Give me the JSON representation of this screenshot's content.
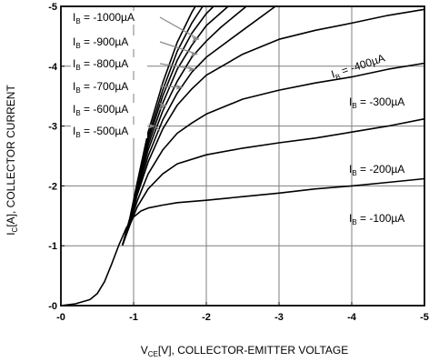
{
  "chart_data": {
    "type": "line",
    "xlabel_parts": [
      "V",
      "CE",
      "[V], COLLECTOR-EMITTER VOLTAGE"
    ],
    "ylabel_parts": [
      "I",
      "C",
      "[A], COLLECTOR CURRENT"
    ],
    "xlim": [
      0,
      -5
    ],
    "ylim": [
      0,
      -5
    ],
    "x_ticks": [
      "-0",
      "-1",
      "-2",
      "-3",
      "-4",
      "-5"
    ],
    "y_ticks": [
      "-0",
      "-1",
      "-2",
      "-3",
      "-4",
      "-5"
    ],
    "grid": true,
    "series": [
      {
        "name": "IB = -100µA",
        "label_main": "I",
        "label_sub": "B",
        "label_rest": " = -100µA",
        "points": [
          [
            0,
            0
          ],
          [
            -0.2,
            -0.03
          ],
          [
            -0.4,
            -0.1
          ],
          [
            -0.5,
            -0.2
          ],
          [
            -0.6,
            -0.4
          ],
          [
            -0.7,
            -0.7
          ],
          [
            -0.8,
            -1.02
          ],
          [
            -0.9,
            -1.3
          ],
          [
            -1.0,
            -1.48
          ],
          [
            -1.1,
            -1.58
          ],
          [
            -1.2,
            -1.63
          ],
          [
            -1.4,
            -1.68
          ],
          [
            -1.6,
            -1.72
          ],
          [
            -2.0,
            -1.76
          ],
          [
            -2.5,
            -1.82
          ],
          [
            -3.0,
            -1.88
          ],
          [
            -3.5,
            -1.95
          ],
          [
            -4.0,
            -2.0
          ],
          [
            -4.5,
            -2.06
          ],
          [
            -5.0,
            -2.12
          ]
        ]
      },
      {
        "name": "IB = -200µA",
        "label_main": "I",
        "label_sub": "B",
        "label_rest": " = -200µA",
        "points": [
          [
            -0.85,
            -1.02
          ],
          [
            -0.95,
            -1.35
          ],
          [
            -1.05,
            -1.65
          ],
          [
            -1.2,
            -1.95
          ],
          [
            -1.4,
            -2.2
          ],
          [
            -1.6,
            -2.37
          ],
          [
            -2.0,
            -2.52
          ],
          [
            -2.5,
            -2.63
          ],
          [
            -3.0,
            -2.72
          ],
          [
            -3.5,
            -2.8
          ],
          [
            -4.0,
            -2.9
          ],
          [
            -4.5,
            -3.0
          ],
          [
            -5.0,
            -3.12
          ]
        ]
      },
      {
        "name": "IB = -300µA",
        "label_main": "I",
        "label_sub": "B",
        "label_rest": " = -300µA",
        "points": [
          [
            -0.85,
            -1.02
          ],
          [
            -0.95,
            -1.38
          ],
          [
            -1.05,
            -1.75
          ],
          [
            -1.2,
            -2.2
          ],
          [
            -1.4,
            -2.6
          ],
          [
            -1.6,
            -2.88
          ],
          [
            -1.8,
            -3.05
          ],
          [
            -2.0,
            -3.2
          ],
          [
            -2.5,
            -3.45
          ],
          [
            -3.0,
            -3.6
          ],
          [
            -3.5,
            -3.72
          ],
          [
            -4.0,
            -3.82
          ],
          [
            -4.5,
            -3.95
          ],
          [
            -5.0,
            -4.05
          ]
        ]
      },
      {
        "name": "IB = -400µA",
        "label_main": "I",
        "label_sub": "B",
        "label_rest": " = -400µA",
        "points": [
          [
            -0.85,
            -1.02
          ],
          [
            -0.95,
            -1.4
          ],
          [
            -1.05,
            -1.85
          ],
          [
            -1.2,
            -2.4
          ],
          [
            -1.4,
            -2.95
          ],
          [
            -1.6,
            -3.35
          ],
          [
            -1.8,
            -3.62
          ],
          [
            -2.0,
            -3.85
          ],
          [
            -2.5,
            -4.2
          ],
          [
            -3.0,
            -4.45
          ],
          [
            -3.5,
            -4.6
          ],
          [
            -4.0,
            -4.72
          ],
          [
            -4.5,
            -4.85
          ],
          [
            -5.0,
            -4.95
          ]
        ]
      },
      {
        "name": "IB = -500µA",
        "label_main": "I",
        "label_sub": "B",
        "label_rest": " = -500µA",
        "points": [
          [
            -0.85,
            -1.02
          ],
          [
            -0.95,
            -1.42
          ],
          [
            -1.05,
            -1.9
          ],
          [
            -1.2,
            -2.5
          ],
          [
            -1.4,
            -3.1
          ],
          [
            -1.6,
            -3.55
          ],
          [
            -1.8,
            -3.9
          ],
          [
            -2.0,
            -4.15
          ],
          [
            -2.5,
            -4.6
          ],
          [
            -2.95,
            -5.0
          ]
        ]
      },
      {
        "name": "IB = -600µA",
        "label_main": "I",
        "label_sub": "B",
        "label_rest": " = -600µA",
        "points": [
          [
            -0.85,
            -1.02
          ],
          [
            -0.95,
            -1.43
          ],
          [
            -1.05,
            -1.95
          ],
          [
            -1.2,
            -2.6
          ],
          [
            -1.4,
            -3.25
          ],
          [
            -1.6,
            -3.75
          ],
          [
            -1.8,
            -4.15
          ],
          [
            -2.0,
            -4.42
          ],
          [
            -2.2,
            -4.65
          ],
          [
            -2.55,
            -5.0
          ]
        ]
      },
      {
        "name": "IB = -700µA",
        "label_main": "I",
        "label_sub": "B",
        "label_rest": " = -700µA",
        "points": [
          [
            -0.85,
            -1.02
          ],
          [
            -0.95,
            -1.44
          ],
          [
            -1.05,
            -1.98
          ],
          [
            -1.2,
            -2.68
          ],
          [
            -1.4,
            -3.38
          ],
          [
            -1.6,
            -3.95
          ],
          [
            -1.8,
            -4.35
          ],
          [
            -2.0,
            -4.68
          ],
          [
            -2.3,
            -5.0
          ]
        ]
      },
      {
        "name": "IB = -800µA",
        "label_main": "I",
        "label_sub": "B",
        "label_rest": " = -800µA",
        "points": [
          [
            -0.85,
            -1.02
          ],
          [
            -0.95,
            -1.45
          ],
          [
            -1.05,
            -2.0
          ],
          [
            -1.2,
            -2.75
          ],
          [
            -1.4,
            -3.5
          ],
          [
            -1.6,
            -4.1
          ],
          [
            -1.8,
            -4.55
          ],
          [
            -2.0,
            -4.88
          ],
          [
            -2.1,
            -5.0
          ]
        ]
      },
      {
        "name": "IB = -900µA",
        "label_main": "I",
        "label_sub": "B",
        "label_rest": " = -900µA",
        "points": [
          [
            -0.85,
            -1.02
          ],
          [
            -0.95,
            -1.46
          ],
          [
            -1.05,
            -2.03
          ],
          [
            -1.2,
            -2.82
          ],
          [
            -1.4,
            -3.6
          ],
          [
            -1.6,
            -4.25
          ],
          [
            -1.8,
            -4.72
          ],
          [
            -1.95,
            -5.0
          ]
        ]
      },
      {
        "name": "IB = -1000µA",
        "label_main": "I",
        "label_sub": "B",
        "label_rest": " = -1000µA",
        "points": [
          [
            -0.85,
            -1.02
          ],
          [
            -0.95,
            -1.47
          ],
          [
            -1.05,
            -2.06
          ],
          [
            -1.2,
            -2.9
          ],
          [
            -1.4,
            -3.72
          ],
          [
            -1.6,
            -4.4
          ],
          [
            -1.8,
            -4.9
          ],
          [
            -1.85,
            -5.0
          ]
        ]
      }
    ]
  }
}
